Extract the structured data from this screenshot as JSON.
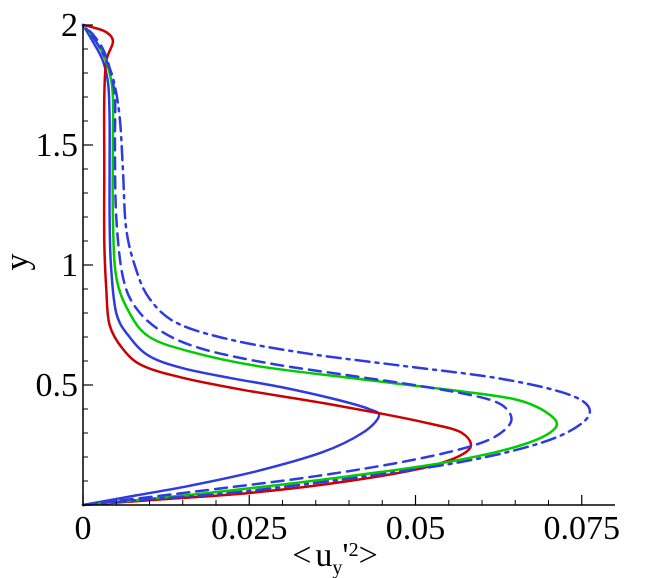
{
  "chart_data": {
    "type": "line",
    "xlabel": "< u_y'^2 >",
    "xlabel_parts": {
      "open": "<",
      "main": "u",
      "sub": "y",
      "prime": "'",
      "sup": "2",
      "close": ">"
    },
    "ylabel": "y",
    "xlim": [
      0,
      0.08
    ],
    "ylim": [
      0,
      2
    ],
    "xticks": [
      0,
      0.025,
      0.05,
      0.075
    ],
    "xtick_labels": [
      "0",
      "0.025",
      "0.05",
      "0.075"
    ],
    "yticks": [
      0.5,
      1,
      1.5,
      2
    ],
    "ytick_labels": [
      "0.5",
      "1",
      "1.5",
      "2"
    ],
    "grid": false,
    "legend": "none",
    "series": [
      {
        "color": "#2e3be0",
        "dash": "solid",
        "points": [
          [
            0.0,
            0.0
          ],
          [
            0.002,
            0.01
          ],
          [
            0.008,
            0.04
          ],
          [
            0.016,
            0.08
          ],
          [
            0.026,
            0.14
          ],
          [
            0.036,
            0.22
          ],
          [
            0.042,
            0.3
          ],
          [
            0.0445,
            0.37
          ],
          [
            0.043,
            0.4
          ],
          [
            0.038,
            0.44
          ],
          [
            0.03,
            0.49
          ],
          [
            0.022,
            0.53
          ],
          [
            0.015,
            0.57
          ],
          [
            0.01,
            0.62
          ],
          [
            0.007,
            0.7
          ],
          [
            0.005,
            0.8
          ],
          [
            0.0042,
            1.0
          ],
          [
            0.004,
            1.2
          ],
          [
            0.004,
            1.4
          ],
          [
            0.004,
            1.6
          ],
          [
            0.0038,
            1.75
          ],
          [
            0.003,
            1.85
          ],
          [
            0.0015,
            1.93
          ],
          [
            0.0,
            2.0
          ]
        ]
      },
      {
        "color": "#cc0000",
        "dash": "solid",
        "points": [
          [
            0.0,
            0.0
          ],
          [
            0.01,
            0.02
          ],
          [
            0.025,
            0.05
          ],
          [
            0.04,
            0.1
          ],
          [
            0.052,
            0.16
          ],
          [
            0.058,
            0.23
          ],
          [
            0.057,
            0.3
          ],
          [
            0.052,
            0.34
          ],
          [
            0.045,
            0.38
          ],
          [
            0.035,
            0.43
          ],
          [
            0.024,
            0.48
          ],
          [
            0.015,
            0.53
          ],
          [
            0.009,
            0.58
          ],
          [
            0.006,
            0.65
          ],
          [
            0.004,
            0.75
          ],
          [
            0.0035,
            0.9
          ],
          [
            0.0032,
            1.1
          ],
          [
            0.0032,
            1.4
          ],
          [
            0.0032,
            1.7
          ],
          [
            0.0035,
            1.85
          ],
          [
            0.0045,
            1.93
          ],
          [
            0.0035,
            1.97
          ],
          [
            0.0015,
            1.99
          ],
          [
            0.0,
            2.0
          ]
        ]
      },
      {
        "color": "#00cc00",
        "dash": "solid",
        "points": [
          [
            0.0,
            0.0
          ],
          [
            0.008,
            0.02
          ],
          [
            0.022,
            0.06
          ],
          [
            0.04,
            0.12
          ],
          [
            0.055,
            0.18
          ],
          [
            0.066,
            0.25
          ],
          [
            0.071,
            0.32
          ],
          [
            0.07,
            0.38
          ],
          [
            0.065,
            0.44
          ],
          [
            0.055,
            0.48
          ],
          [
            0.04,
            0.53
          ],
          [
            0.026,
            0.58
          ],
          [
            0.016,
            0.64
          ],
          [
            0.01,
            0.7
          ],
          [
            0.007,
            0.8
          ],
          [
            0.005,
            0.95
          ],
          [
            0.0045,
            1.2
          ],
          [
            0.0045,
            1.5
          ],
          [
            0.0045,
            1.7
          ],
          [
            0.004,
            1.8
          ],
          [
            0.003,
            1.88
          ],
          [
            0.0015,
            1.95
          ],
          [
            0.0,
            2.0
          ]
        ]
      },
      {
        "color": "#2e3be0",
        "dash": "dashed",
        "points": [
          [
            0.0,
            0.0
          ],
          [
            0.006,
            0.02
          ],
          [
            0.018,
            0.06
          ],
          [
            0.035,
            0.12
          ],
          [
            0.05,
            0.19
          ],
          [
            0.06,
            0.26
          ],
          [
            0.064,
            0.33
          ],
          [
            0.064,
            0.39
          ],
          [
            0.061,
            0.44
          ],
          [
            0.052,
            0.49
          ],
          [
            0.04,
            0.54
          ],
          [
            0.028,
            0.59
          ],
          [
            0.018,
            0.65
          ],
          [
            0.012,
            0.72
          ],
          [
            0.008,
            0.82
          ],
          [
            0.006,
            0.95
          ],
          [
            0.005,
            1.2
          ],
          [
            0.0048,
            1.5
          ],
          [
            0.0048,
            1.7
          ],
          [
            0.004,
            1.82
          ],
          [
            0.003,
            1.9
          ],
          [
            0.0015,
            1.96
          ],
          [
            0.0,
            2.0
          ]
        ]
      },
      {
        "color": "#2e3be0",
        "dash": "dashdot",
        "points": [
          [
            0.0,
            0.0
          ],
          [
            0.008,
            0.02
          ],
          [
            0.022,
            0.05
          ],
          [
            0.04,
            0.11
          ],
          [
            0.057,
            0.18
          ],
          [
            0.069,
            0.26
          ],
          [
            0.075,
            0.34
          ],
          [
            0.076,
            0.41
          ],
          [
            0.072,
            0.47
          ],
          [
            0.062,
            0.53
          ],
          [
            0.048,
            0.58
          ],
          [
            0.034,
            0.63
          ],
          [
            0.022,
            0.69
          ],
          [
            0.014,
            0.76
          ],
          [
            0.01,
            0.86
          ],
          [
            0.008,
            0.98
          ],
          [
            0.0065,
            1.15
          ],
          [
            0.006,
            1.4
          ],
          [
            0.0055,
            1.62
          ],
          [
            0.0045,
            1.78
          ],
          [
            0.003,
            1.88
          ],
          [
            0.0015,
            1.95
          ],
          [
            0.0,
            2.0
          ]
        ]
      }
    ]
  }
}
